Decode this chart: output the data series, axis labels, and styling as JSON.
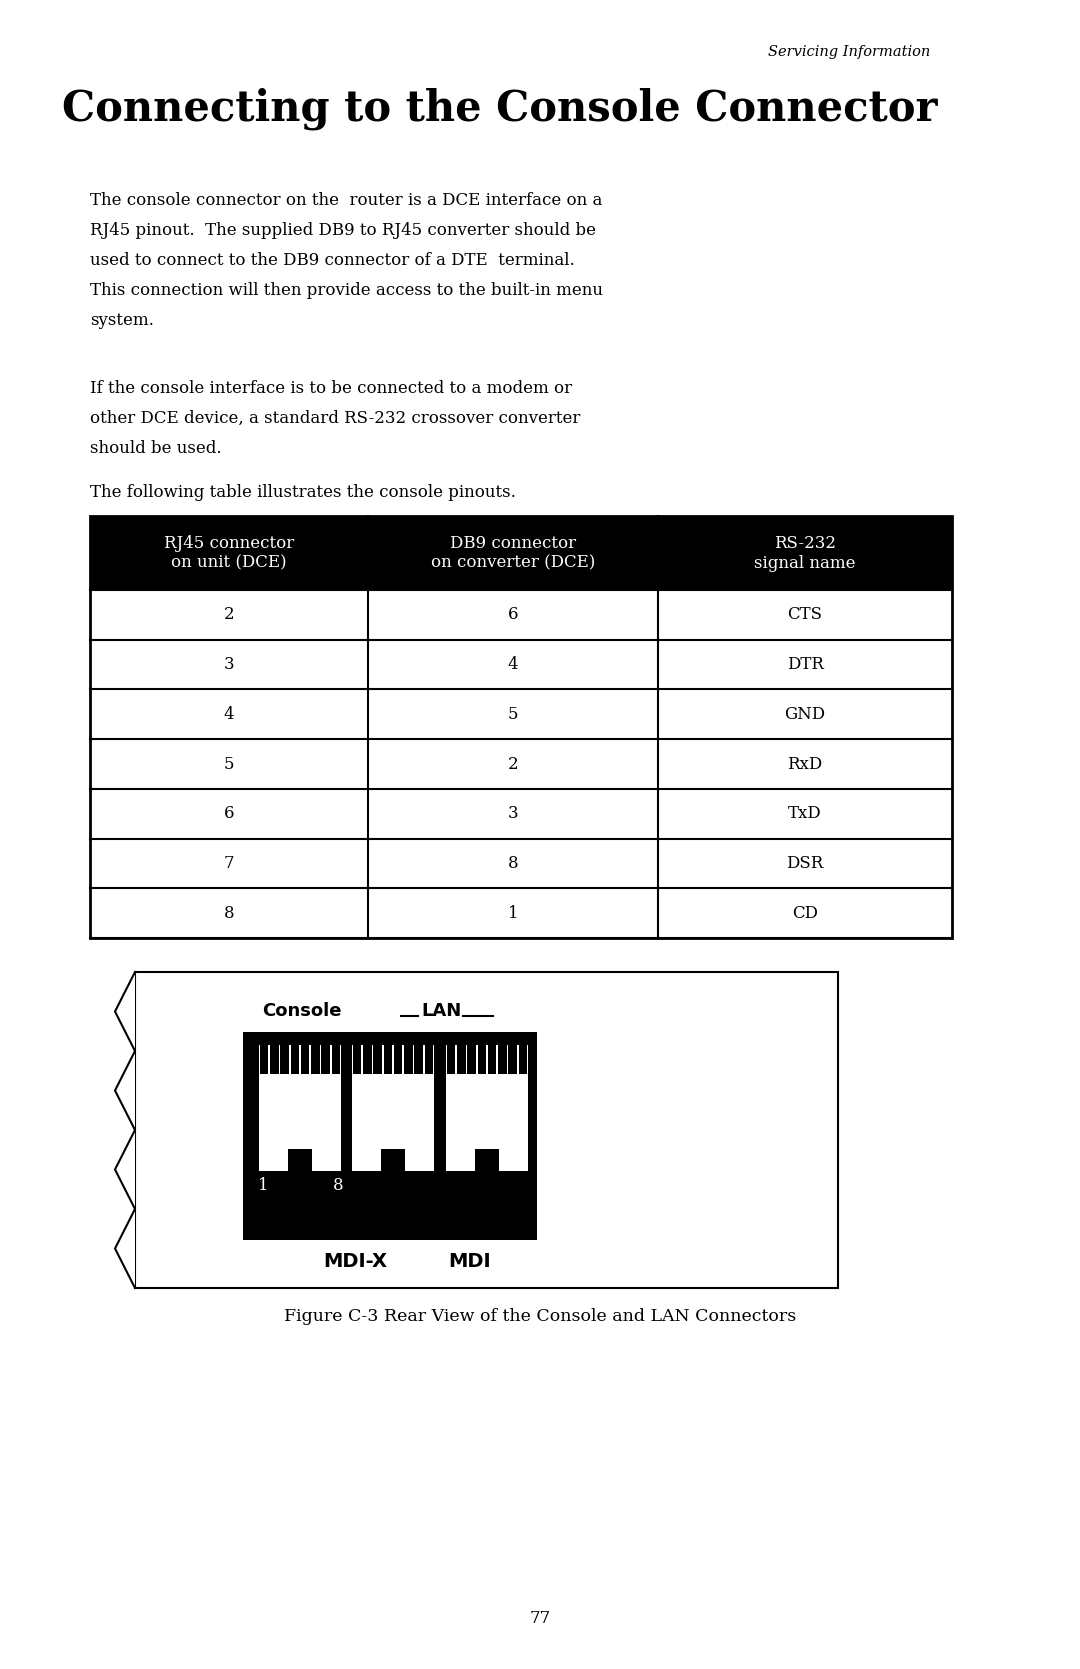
{
  "page_header": "Servicing Information",
  "title": "Connecting to the Console Connector",
  "para1_lines": [
    "The console connector on the  router is a DCE interface on a",
    "RJ45 pinout.  The supplied DB9 to RJ45 converter should be",
    "used to connect to the DB9 connector of a DTE  terminal.",
    "This connection will then provide access to the built-in menu",
    "system."
  ],
  "para2_lines": [
    "If the console interface is to be connected to a modem or",
    "other DCE device, a standard RS-232 crossover converter",
    "should be used."
  ],
  "para3": "The following table illustrates the console pinouts.",
  "table_headers": [
    [
      "RJ45 connector",
      "on unit (DCE)"
    ],
    [
      "DB9 connector",
      "on converter (DCE)"
    ],
    [
      "RS-232",
      "signal name"
    ]
  ],
  "table_data": [
    [
      "2",
      "6",
      "CTS"
    ],
    [
      "3",
      "4",
      "DTR"
    ],
    [
      "4",
      "5",
      "GND"
    ],
    [
      "5",
      "2",
      "RxD"
    ],
    [
      "6",
      "3",
      "TxD"
    ],
    [
      "7",
      "8",
      "DSR"
    ],
    [
      "8",
      "1",
      "CD"
    ]
  ],
  "figure_caption": "Figure C-3 Rear View of the Console and LAN Connectors",
  "page_number": "77",
  "bg_color": "#ffffff",
  "text_color": "#000000",
  "header_bg": "#000000",
  "header_fg": "#ffffff"
}
